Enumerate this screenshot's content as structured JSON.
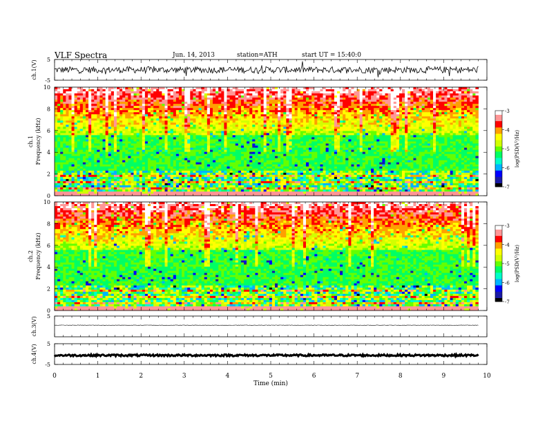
{
  "header": {
    "title": "VLF Spectra",
    "date": "Jun. 14, 2013",
    "station": "station=ATH",
    "start": "start UT = 15:40:0"
  },
  "colors": {
    "waveform": "#000000",
    "cmap": [
      "#000000",
      "#1a1aa6",
      "#0000ff",
      "#00b4ff",
      "#00ffc8",
      "#00ff64",
      "#64ff00",
      "#d2ff00",
      "#ffff00",
      "#ffa000",
      "#ff0000",
      "#ff9696",
      "#ffffff"
    ]
  },
  "chart_data": [
    {
      "type": "line",
      "ylabel": "ch.1(V)",
      "ylim": [
        -5,
        5
      ],
      "yticks": [
        "5",
        "-5"
      ],
      "xlim": [
        0,
        10
      ]
    },
    {
      "type": "heatmap",
      "ylabel": "ch.1\nFrequency (kHz)",
      "ylim": [
        0,
        10
      ],
      "yticks": [
        "0",
        "2",
        "4",
        "6",
        "8",
        "10"
      ],
      "xlim": [
        0,
        10
      ],
      "data_xmax": 9.8,
      "colorbar": {
        "label": "log(PSD(V²/Hz)",
        "range": [
          -7,
          -3
        ],
        "ticks": [
          "-3",
          "-4",
          "-5",
          "-6",
          "-7"
        ]
      }
    },
    {
      "type": "heatmap",
      "ylabel": "ch.2\nFrequency (kHz)",
      "ylim": [
        0,
        10
      ],
      "yticks": [
        "0",
        "2",
        "4",
        "6",
        "8",
        "10"
      ],
      "xlim": [
        0,
        10
      ],
      "data_xmax": 9.8,
      "colorbar": {
        "label": "log(PSD(V²/Hz)",
        "range": [
          -7,
          -3
        ],
        "ticks": [
          "-3",
          "-4",
          "-5",
          "-6",
          "-7"
        ]
      }
    },
    {
      "type": "line",
      "ylabel": "ch.3(V)",
      "ylim": [
        -5,
        5
      ],
      "yticks": [
        "5"
      ],
      "xlim": [
        0,
        10
      ]
    },
    {
      "type": "line",
      "ylabel": "ch.4(V)",
      "ylim": [
        -5,
        5
      ],
      "yticks": [
        "5",
        "-5"
      ],
      "xlim": [
        0,
        10
      ]
    }
  ],
  "x_axis": {
    "label": "Time (min)",
    "ticks": [
      "0",
      "1",
      "2",
      "3",
      "4",
      "5",
      "6",
      "7",
      "8",
      "9",
      "10"
    ]
  }
}
